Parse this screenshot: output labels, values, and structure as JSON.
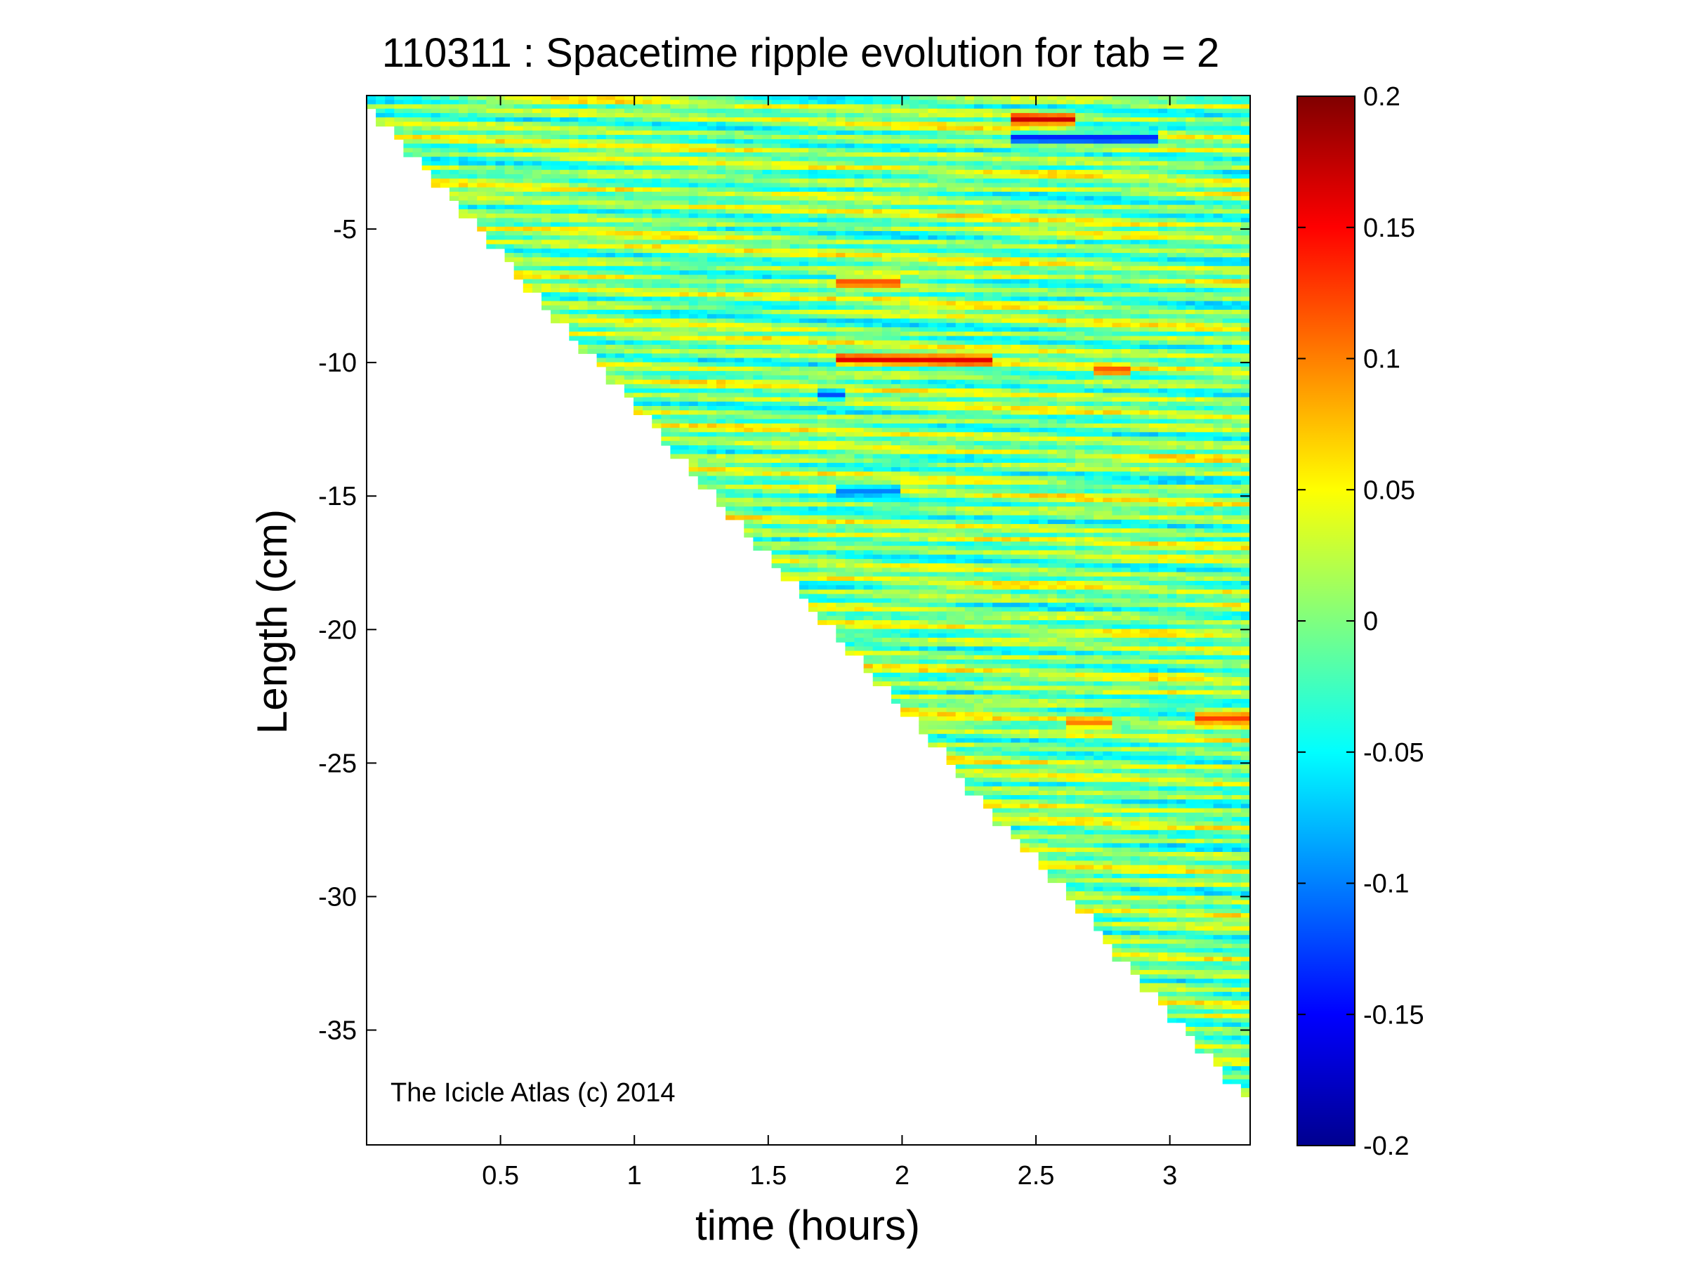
{
  "chart_data": {
    "type": "heatmap",
    "title": "110311 : Spacetime ripple evolution for tab = 2",
    "xlabel": "time (hours)",
    "ylabel": "Length (cm)",
    "xlim": [
      0.0,
      3.3
    ],
    "ylim": [
      -39.3,
      0
    ],
    "x_ticks": [
      0.5,
      1,
      1.5,
      2,
      2.5,
      3
    ],
    "x_tick_labels": [
      "0.5",
      "1",
      "1.5",
      "2",
      "2.5",
      "3"
    ],
    "y_ticks": [
      -5,
      -10,
      -15,
      -20,
      -25,
      -30,
      -35
    ],
    "y_tick_labels": [
      "-5",
      "-10",
      "-15",
      "-20",
      "-25",
      "-30",
      "-35"
    ],
    "colorbar": {
      "colormap": "jet",
      "clim": [
        -0.2,
        0.2
      ],
      "ticks": [
        0.2,
        0.15,
        0.1,
        0.05,
        0,
        -0.05,
        -0.1,
        -0.15,
        -0.2
      ],
      "tick_labels": [
        "0.2",
        "0.15",
        "0.1",
        "0.05",
        "0",
        "-0.05",
        "-0.1",
        "-0.15",
        "-0.2"
      ]
    },
    "data_region": {
      "description_boundary": "icicle tip length grows with time",
      "tip_boundary": [
        [
          0.0,
          0.0
        ],
        [
          3.3,
          -37.5
        ]
      ],
      "ridge_spacing_cm": 0.55,
      "ridge_drift_cm_per_hour": -0.35
    },
    "notable_features": [
      {
        "x_range": [
          2.4,
          2.65
        ],
        "y": -0.9,
        "value": 0.17
      },
      {
        "x_range": [
          2.4,
          2.95
        ],
        "y": -1.6,
        "value": -0.14
      },
      {
        "x_range": [
          1.75,
          2.35
        ],
        "y": -9.9,
        "value": 0.16
      },
      {
        "x_range": [
          2.7,
          2.85
        ],
        "y": -10.3,
        "value": 0.12
      },
      {
        "x_range": [
          1.75,
          2.0
        ],
        "y": -7.0,
        "value": 0.12
      },
      {
        "x_range": [
          1.7,
          1.78
        ],
        "y": -11.2,
        "value": -0.12
      },
      {
        "x_range": [
          1.75,
          2.0
        ],
        "y": -14.8,
        "value": -0.1
      },
      {
        "x_range": [
          3.1,
          3.3
        ],
        "y": -23.3,
        "value": 0.13
      },
      {
        "x_range": [
          2.6,
          2.8
        ],
        "y": -23.5,
        "value": 0.1
      }
    ],
    "annotation": "The Icicle Atlas (c) 2014"
  }
}
